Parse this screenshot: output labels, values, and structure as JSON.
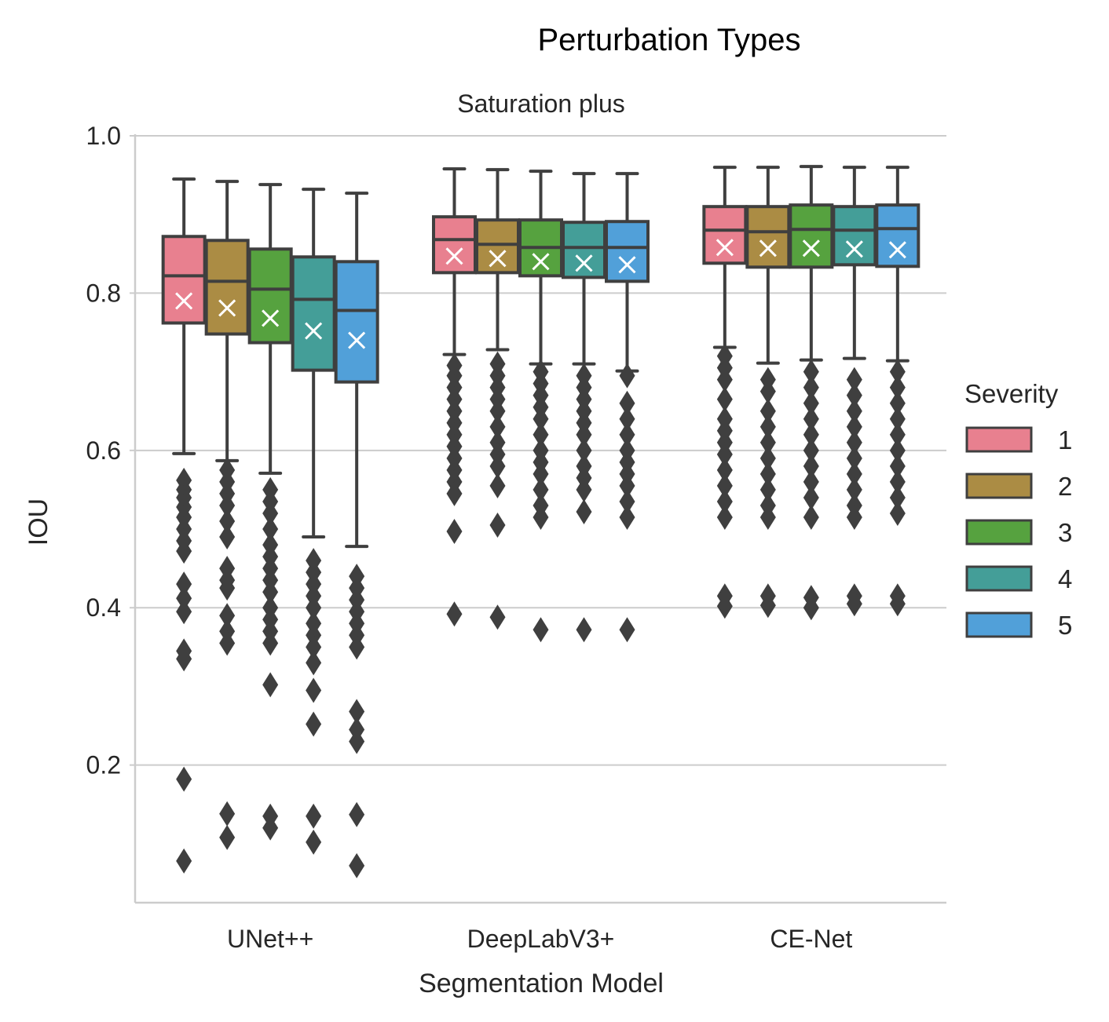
{
  "chart_data": {
    "type": "box",
    "title": "Perturbation Types",
    "subtitle": "Saturation plus",
    "xlabel": "Segmentation Model",
    "ylabel": "IOU",
    "ylim": [
      0.025,
      1.0
    ],
    "yticks": [
      0.2,
      0.4,
      0.6,
      0.8,
      1.0
    ],
    "ytick_labels": [
      "0.2",
      "0.4",
      "0.6",
      "0.8",
      "1.0"
    ],
    "grid": "horizontal",
    "legend_placement": "right",
    "legend_title": "Severity",
    "categories": [
      "UNet++",
      "DeepLabV3+",
      "CE-Net"
    ],
    "colors": {
      "1": "#e8808f",
      "2": "#ab8c44",
      "3": "#56a23f",
      "4": "#449e98",
      "5": "#51a0d9",
      "edge": "#3f3f3f",
      "mean_marker": "#ffffff",
      "grid": "#cccccc"
    },
    "mean_marker": "x",
    "series": [
      {
        "name": "1",
        "boxes": [
          {
            "whislo": 0.596,
            "q1": 0.762,
            "med": 0.822,
            "q3": 0.872,
            "whishi": 0.945,
            "mean": 0.79,
            "fliers": [
              0.562,
              0.55,
              0.54,
              0.528,
              0.515,
              0.5,
              0.485,
              0.472,
              0.43,
              0.412,
              0.395,
              0.345,
              0.335,
              0.182,
              0.078
            ]
          },
          {
            "whislo": 0.722,
            "q1": 0.826,
            "med": 0.868,
            "q3": 0.897,
            "whishi": 0.958,
            "mean": 0.847,
            "fliers": [
              0.708,
              0.695,
              0.68,
              0.665,
              0.65,
              0.635,
              0.62,
              0.605,
              0.59,
              0.575,
              0.56,
              0.545,
              0.497,
              0.392
            ]
          },
          {
            "whislo": 0.731,
            "q1": 0.838,
            "med": 0.88,
            "q3": 0.91,
            "whishi": 0.96,
            "mean": 0.858,
            "fliers": [
              0.72,
              0.705,
              0.69,
              0.665,
              0.64,
              0.625,
              0.61,
              0.595,
              0.575,
              0.555,
              0.535,
              0.515,
              0.415,
              0.402
            ]
          }
        ]
      },
      {
        "name": "2",
        "boxes": [
          {
            "whislo": 0.587,
            "q1": 0.748,
            "med": 0.815,
            "q3": 0.867,
            "whishi": 0.942,
            "mean": 0.781,
            "fliers": [
              0.575,
              0.56,
              0.545,
              0.53,
              0.51,
              0.49,
              0.45,
              0.435,
              0.425,
              0.39,
              0.37,
              0.355,
              0.138,
              0.108
            ]
          },
          {
            "whislo": 0.728,
            "q1": 0.826,
            "med": 0.862,
            "q3": 0.893,
            "whishi": 0.957,
            "mean": 0.844,
            "fliers": [
              0.71,
              0.695,
              0.68,
              0.665,
              0.65,
              0.63,
              0.61,
              0.595,
              0.58,
              0.555,
              0.505,
              0.388
            ]
          },
          {
            "whislo": 0.711,
            "q1": 0.833,
            "med": 0.878,
            "q3": 0.91,
            "whishi": 0.96,
            "mean": 0.857,
            "fliers": [
              0.69,
              0.675,
              0.65,
              0.63,
              0.61,
              0.59,
              0.57,
              0.55,
              0.53,
              0.515,
              0.415,
              0.403
            ]
          }
        ]
      },
      {
        "name": "3",
        "boxes": [
          {
            "whislo": 0.571,
            "q1": 0.737,
            "med": 0.805,
            "q3": 0.856,
            "whishi": 0.938,
            "mean": 0.768,
            "fliers": [
              0.55,
              0.535,
              0.52,
              0.5,
              0.48,
              0.465,
              0.45,
              0.435,
              0.42,
              0.4,
              0.385,
              0.37,
              0.355,
              0.302,
              0.135,
              0.12
            ]
          },
          {
            "whislo": 0.71,
            "q1": 0.822,
            "med": 0.858,
            "q3": 0.893,
            "whishi": 0.955,
            "mean": 0.84,
            "fliers": [
              0.7,
              0.685,
              0.67,
              0.655,
              0.64,
              0.62,
              0.6,
              0.585,
              0.57,
              0.55,
              0.53,
              0.515,
              0.372
            ]
          },
          {
            "whislo": 0.715,
            "q1": 0.833,
            "med": 0.881,
            "q3": 0.912,
            "whishi": 0.961,
            "mean": 0.857,
            "fliers": [
              0.7,
              0.68,
              0.66,
              0.64,
              0.62,
              0.6,
              0.58,
              0.56,
              0.54,
              0.515,
              0.413,
              0.4
            ]
          }
        ]
      },
      {
        "name": "4",
        "boxes": [
          {
            "whislo": 0.49,
            "q1": 0.702,
            "med": 0.792,
            "q3": 0.846,
            "whishi": 0.932,
            "mean": 0.752,
            "fliers": [
              0.46,
              0.445,
              0.43,
              0.415,
              0.4,
              0.38,
              0.365,
              0.35,
              0.33,
              0.295,
              0.252,
              0.135,
              0.102
            ]
          },
          {
            "whislo": 0.71,
            "q1": 0.82,
            "med": 0.858,
            "q3": 0.89,
            "whishi": 0.952,
            "mean": 0.838,
            "fliers": [
              0.695,
              0.68,
              0.665,
              0.65,
              0.635,
              0.62,
              0.6,
              0.58,
              0.565,
              0.55,
              0.522,
              0.372
            ]
          },
          {
            "whislo": 0.717,
            "q1": 0.836,
            "med": 0.88,
            "q3": 0.91,
            "whishi": 0.96,
            "mean": 0.856,
            "fliers": [
              0.69,
              0.67,
              0.65,
              0.63,
              0.61,
              0.59,
              0.57,
              0.55,
              0.53,
              0.515,
              0.415,
              0.405
            ]
          }
        ]
      },
      {
        "name": "5",
        "boxes": [
          {
            "whislo": 0.478,
            "q1": 0.687,
            "med": 0.778,
            "q3": 0.84,
            "whishi": 0.927,
            "mean": 0.74,
            "fliers": [
              0.44,
              0.425,
              0.41,
              0.395,
              0.38,
              0.365,
              0.35,
              0.268,
              0.245,
              0.23,
              0.137,
              0.072
            ]
          },
          {
            "whislo": 0.701,
            "q1": 0.815,
            "med": 0.858,
            "q3": 0.891,
            "whishi": 0.952,
            "mean": 0.836,
            "fliers": [
              0.695,
              0.66,
              0.64,
              0.62,
              0.6,
              0.585,
              0.57,
              0.555,
              0.535,
              0.515,
              0.372
            ]
          },
          {
            "whislo": 0.714,
            "q1": 0.834,
            "med": 0.882,
            "q3": 0.912,
            "whishi": 0.96,
            "mean": 0.855,
            "fliers": [
              0.7,
              0.68,
              0.66,
              0.64,
              0.62,
              0.6,
              0.58,
              0.56,
              0.54,
              0.52,
              0.415,
              0.405
            ]
          }
        ]
      }
    ]
  }
}
